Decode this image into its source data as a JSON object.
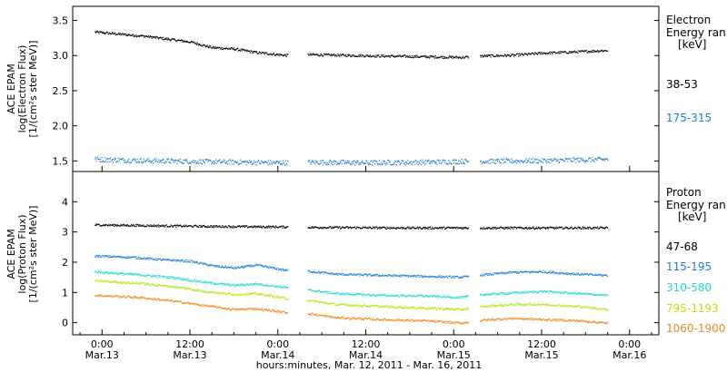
{
  "figure": {
    "xlabel": "hours:minutes, Mar. 12, 2011 - Mar. 16, 2011",
    "x_ticks": [
      {
        "hour": 0,
        "time": "0:00",
        "date": "Mar.13"
      },
      {
        "hour": 12,
        "time": "12:00",
        "date": "Mar.13"
      },
      {
        "hour": 24,
        "time": "0:00",
        "date": "Mar.14"
      },
      {
        "hour": 36,
        "time": "12:00",
        "date": "Mar.14"
      },
      {
        "hour": 48,
        "time": "0:00",
        "date": "Mar.15"
      },
      {
        "hour": 60,
        "time": "12:00",
        "date": "Mar.15"
      },
      {
        "hour": 72,
        "time": "0:00",
        "date": "Mar.16"
      }
    ]
  },
  "chart_data": [
    {
      "type": "scatter",
      "ylabel_lines": [
        "ACE EPAM",
        "log(Electron Flux)",
        "[1/(cm²s ster MeV)]"
      ],
      "ylim": [
        1.35,
        3.7
      ],
      "y_ticks": [
        1.5,
        2.0,
        2.5,
        3.0,
        3.5
      ],
      "y_tick_labels": [
        "1.5",
        "2.0",
        "2.5",
        "3.0",
        "3.5"
      ],
      "xlim_hours": [
        -4,
        76
      ],
      "data_gaps_hours": [
        [
          25.3,
          28.0
        ],
        [
          50.0,
          51.5
        ]
      ],
      "legend_title": [
        "Electron",
        "Energy ran"
      ],
      "legend_unit": "[keV]",
      "series": [
        {
          "name": "38-53",
          "color": "#000000",
          "points": [
            [
              -1,
              3.34
            ],
            [
              6,
              3.28
            ],
            [
              12,
              3.2
            ],
            [
              15,
              3.12
            ],
            [
              18,
              3.1
            ],
            [
              21,
              3.05
            ],
            [
              25,
              3.01
            ],
            [
              28,
              3.02
            ],
            [
              33,
              3.01
            ],
            [
              38,
              3.0
            ],
            [
              44,
              2.99
            ],
            [
              49,
              2.98
            ],
            [
              52,
              3.0
            ],
            [
              56,
              3.01
            ],
            [
              60,
              3.04
            ],
            [
              65,
              3.06
            ],
            [
              69,
              3.08
            ]
          ]
        },
        {
          "name": "175-315",
          "color": "#1e7dd4",
          "points": [
            [
              -1,
              1.53
            ],
            [
              6,
              1.51
            ],
            [
              12,
              1.5
            ],
            [
              18,
              1.49
            ],
            [
              25,
              1.48
            ],
            [
              28,
              1.49
            ],
            [
              36,
              1.48
            ],
            [
              44,
              1.49
            ],
            [
              49,
              1.5
            ],
            [
              52,
              1.5
            ],
            [
              60,
              1.51
            ],
            [
              69,
              1.53
            ]
          ]
        }
      ]
    },
    {
      "type": "scatter",
      "ylabel_lines": [
        "ACE EPAM",
        "log(Proton Flux)",
        "[1/(cm²s ster MeV)]"
      ],
      "ylim": [
        -0.4,
        5.0
      ],
      "y_ticks": [
        0,
        1,
        2,
        3,
        4
      ],
      "y_tick_labels": [
        "0",
        "1",
        "2",
        "3",
        "4"
      ],
      "xlim_hours": [
        -4,
        76
      ],
      "data_gaps_hours": [
        [
          25.3,
          28.0
        ],
        [
          50.0,
          51.5
        ]
      ],
      "legend_title": [
        "Proton",
        "Energy ran"
      ],
      "legend_unit": "[keV]",
      "series": [
        {
          "name": "47-68",
          "color": "#000000",
          "points": [
            [
              -1,
              3.25
            ],
            [
              8,
              3.22
            ],
            [
              15,
              3.2
            ],
            [
              25,
              3.18
            ],
            [
              28,
              3.17
            ],
            [
              40,
              3.15
            ],
            [
              49,
              3.15
            ],
            [
              52,
              3.15
            ],
            [
              69,
              3.15
            ]
          ]
        },
        {
          "name": "115-195",
          "color": "#1e7dd4",
          "points": [
            [
              -1,
              2.22
            ],
            [
              4,
              2.18
            ],
            [
              8,
              2.1
            ],
            [
              12,
              2.05
            ],
            [
              15,
              1.9
            ],
            [
              18,
              1.82
            ],
            [
              21,
              1.92
            ],
            [
              25,
              1.75
            ],
            [
              28,
              1.72
            ],
            [
              32,
              1.62
            ],
            [
              38,
              1.58
            ],
            [
              44,
              1.55
            ],
            [
              49,
              1.52
            ],
            [
              52,
              1.6
            ],
            [
              56,
              1.68
            ],
            [
              60,
              1.7
            ],
            [
              65,
              1.62
            ],
            [
              69,
              1.58
            ]
          ]
        },
        {
          "name": "310-580",
          "color": "#20d8d0",
          "points": [
            [
              -1,
              1.7
            ],
            [
              5,
              1.6
            ],
            [
              10,
              1.5
            ],
            [
              14,
              1.35
            ],
            [
              18,
              1.25
            ],
            [
              21,
              1.3
            ],
            [
              25,
              1.18
            ],
            [
              28,
              1.1
            ],
            [
              32,
              0.98
            ],
            [
              38,
              0.92
            ],
            [
              44,
              0.9
            ],
            [
              49,
              0.85
            ],
            [
              52,
              0.95
            ],
            [
              56,
              1.0
            ],
            [
              60,
              1.05
            ],
            [
              65,
              0.98
            ],
            [
              69,
              0.92
            ]
          ]
        },
        {
          "name": "795-1193",
          "color": "#b4e614",
          "points": [
            [
              -1,
              1.4
            ],
            [
              5,
              1.32
            ],
            [
              10,
              1.2
            ],
            [
              14,
              1.05
            ],
            [
              18,
              0.95
            ],
            [
              21,
              0.98
            ],
            [
              25,
              0.82
            ],
            [
              28,
              0.75
            ],
            [
              32,
              0.62
            ],
            [
              38,
              0.55
            ],
            [
              44,
              0.5
            ],
            [
              49,
              0.45
            ],
            [
              52,
              0.55
            ],
            [
              56,
              0.62
            ],
            [
              60,
              0.62
            ],
            [
              65,
              0.55
            ],
            [
              69,
              0.45
            ]
          ]
        },
        {
          "name": "1060-1900",
          "color": "#f08a1e",
          "points": [
            [
              -1,
              0.92
            ],
            [
              5,
              0.85
            ],
            [
              10,
              0.72
            ],
            [
              14,
              0.58
            ],
            [
              18,
              0.45
            ],
            [
              21,
              0.48
            ],
            [
              25,
              0.35
            ],
            [
              28,
              0.32
            ],
            [
              32,
              0.18
            ],
            [
              38,
              0.12
            ],
            [
              44,
              0.08
            ],
            [
              49,
              0.0
            ],
            [
              52,
              0.1
            ],
            [
              56,
              0.16
            ],
            [
              60,
              0.12
            ],
            [
              65,
              0.08
            ],
            [
              69,
              0.0
            ]
          ]
        }
      ]
    }
  ]
}
